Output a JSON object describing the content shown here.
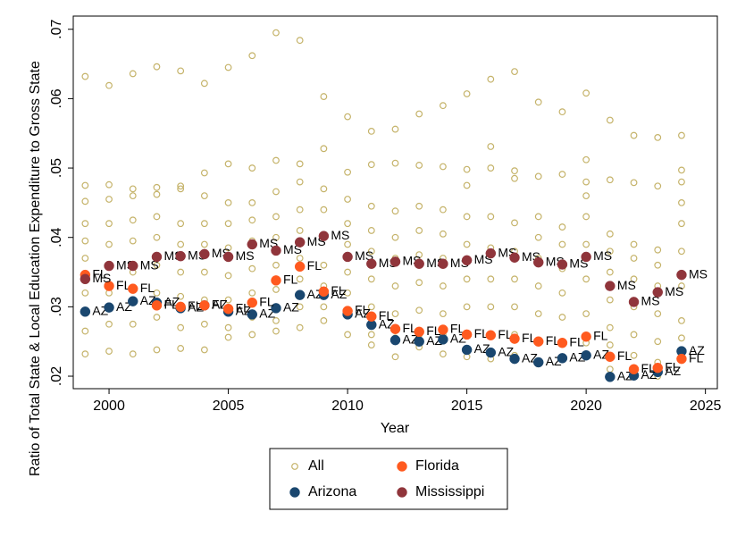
{
  "chart_data": {
    "type": "scatter",
    "xlabel": "Year",
    "ylabel": "Ratio of Total State & Local Education Expenditure to Gross State",
    "xlim": [
      1998.5,
      2025.5
    ],
    "ylim": [
      0.0182,
      0.0719
    ],
    "xticks": [
      2000,
      2005,
      2010,
      2015,
      2020,
      2025
    ],
    "yticks": [
      {
        "value": 0.02,
        "label": ".02"
      },
      {
        "value": 0.03,
        "label": ".03"
      },
      {
        "value": 0.04,
        "label": ".04"
      },
      {
        "value": 0.05,
        "label": ".05"
      },
      {
        "value": 0.06,
        "label": ".06"
      },
      {
        "value": 0.07,
        "label": ".07"
      }
    ],
    "legend": "bottom",
    "series": [
      {
        "name": "All",
        "color": "#c5b36a",
        "marker": "hollow",
        "x": [
          1999,
          1999,
          1999,
          1999,
          1999,
          1999,
          1999,
          1999,
          1999,
          2000,
          2000,
          2000,
          2000,
          2000,
          2000,
          2000,
          2000,
          2000,
          2001,
          2001,
          2001,
          2001,
          2001,
          2001,
          2001,
          2001,
          2001,
          2002,
          2002,
          2002,
          2002,
          2002,
          2002,
          2002,
          2002,
          2002,
          2003,
          2003,
          2003,
          2003,
          2003,
          2003,
          2003,
          2003,
          2003,
          2004,
          2004,
          2004,
          2004,
          2004,
          2004,
          2004,
          2004,
          2004,
          2005,
          2005,
          2005,
          2005,
          2005,
          2005,
          2005,
          2005,
          2005,
          2006,
          2006,
          2006,
          2006,
          2006,
          2006,
          2006,
          2006,
          2006,
          2007,
          2007,
          2007,
          2007,
          2007,
          2007,
          2007,
          2007,
          2007,
          2008,
          2008,
          2008,
          2008,
          2008,
          2008,
          2008,
          2008,
          2008,
          2009,
          2009,
          2009,
          2009,
          2009,
          2009,
          2009,
          2009,
          2009,
          2010,
          2010,
          2010,
          2010,
          2010,
          2010,
          2010,
          2010,
          2010,
          2011,
          2011,
          2011,
          2011,
          2011,
          2011,
          2011,
          2011,
          2011,
          2012,
          2012,
          2012,
          2012,
          2012,
          2012,
          2012,
          2012,
          2012,
          2013,
          2013,
          2013,
          2013,
          2013,
          2013,
          2013,
          2013,
          2013,
          2014,
          2014,
          2014,
          2014,
          2014,
          2014,
          2014,
          2014,
          2014,
          2015,
          2015,
          2015,
          2015,
          2015,
          2015,
          2015,
          2015,
          2015,
          2016,
          2016,
          2016,
          2016,
          2016,
          2016,
          2016,
          2016,
          2016,
          2017,
          2017,
          2017,
          2017,
          2017,
          2017,
          2017,
          2017,
          2017,
          2018,
          2018,
          2018,
          2018,
          2018,
          2018,
          2018,
          2018,
          2018,
          2019,
          2019,
          2019,
          2019,
          2019,
          2019,
          2019,
          2019,
          2019,
          2020,
          2020,
          2020,
          2020,
          2020,
          2020,
          2020,
          2020,
          2020,
          2021,
          2021,
          2021,
          2021,
          2021,
          2021,
          2021,
          2021,
          2021,
          2022,
          2022,
          2022,
          2022,
          2022,
          2022,
          2022,
          2022,
          2022,
          2023,
          2023,
          2023,
          2023,
          2023,
          2023,
          2023,
          2023,
          2023,
          2024,
          2024,
          2024,
          2024,
          2024,
          2024,
          2024,
          2024,
          2024
        ],
        "values": [
          0.0632,
          0.0475,
          0.0452,
          0.042,
          0.0395,
          0.037,
          0.032,
          0.0265,
          0.0232,
          0.0619,
          0.0476,
          0.0455,
          0.042,
          0.039,
          0.036,
          0.032,
          0.0275,
          0.0236,
          0.0636,
          0.047,
          0.046,
          0.0425,
          0.0395,
          0.035,
          0.031,
          0.0275,
          0.0232,
          0.0646,
          0.0472,
          0.0462,
          0.043,
          0.04,
          0.036,
          0.032,
          0.0285,
          0.0238,
          0.064,
          0.0474,
          0.047,
          0.042,
          0.039,
          0.035,
          0.0315,
          0.027,
          0.024,
          0.0622,
          0.0493,
          0.046,
          0.042,
          0.039,
          0.035,
          0.031,
          0.0275,
          0.0238,
          0.0645,
          0.0506,
          0.045,
          0.042,
          0.0385,
          0.0345,
          0.031,
          0.027,
          0.0256,
          0.0662,
          0.05,
          0.045,
          0.0425,
          0.0395,
          0.0355,
          0.032,
          0.0285,
          0.026,
          0.0695,
          0.0511,
          0.0466,
          0.043,
          0.04,
          0.036,
          0.0325,
          0.028,
          0.0265,
          0.0684,
          0.0506,
          0.048,
          0.044,
          0.041,
          0.037,
          0.034,
          0.03,
          0.027,
          0.0603,
          0.0528,
          0.047,
          0.044,
          0.04,
          0.036,
          0.033,
          0.03,
          0.028,
          0.0574,
          0.0494,
          0.0455,
          0.042,
          0.039,
          0.035,
          0.032,
          0.029,
          0.026,
          0.0553,
          0.0505,
          0.0445,
          0.041,
          0.038,
          0.034,
          0.03,
          0.026,
          0.0245,
          0.0556,
          0.0507,
          0.0438,
          0.04,
          0.037,
          0.033,
          0.029,
          0.0255,
          0.0228,
          0.0578,
          0.0504,
          0.0445,
          0.041,
          0.0375,
          0.0335,
          0.0295,
          0.026,
          0.0242,
          0.059,
          0.0502,
          0.044,
          0.0405,
          0.037,
          0.033,
          0.029,
          0.026,
          0.0232,
          0.0607,
          0.0498,
          0.0475,
          0.043,
          0.039,
          0.034,
          0.03,
          0.026,
          0.0228,
          0.0628,
          0.0531,
          0.05,
          0.043,
          0.0385,
          0.034,
          0.03,
          0.026,
          0.0225,
          0.0639,
          0.0496,
          0.0485,
          0.0421,
          0.038,
          0.034,
          0.03,
          0.026,
          0.023,
          0.0595,
          0.0488,
          0.043,
          0.04,
          0.037,
          0.033,
          0.029,
          0.025,
          0.0222,
          0.0581,
          0.0491,
          0.0415,
          0.039,
          0.0355,
          0.032,
          0.0285,
          0.025,
          0.0226,
          0.0608,
          0.0512,
          0.048,
          0.046,
          0.043,
          0.039,
          0.034,
          0.029,
          0.0248,
          0.0569,
          0.0483,
          0.0405,
          0.038,
          0.035,
          0.031,
          0.027,
          0.0245,
          0.021,
          0.0547,
          0.0479,
          0.039,
          0.037,
          0.034,
          0.03,
          0.026,
          0.023,
          0.0203,
          0.0544,
          0.0474,
          0.0382,
          0.036,
          0.033,
          0.029,
          0.025,
          0.022,
          0.02,
          0.0547,
          0.0497,
          0.048,
          0.045,
          0.042,
          0.038,
          0.033,
          0.028,
          0.0255
        ]
      },
      {
        "name": "Arizona",
        "color": "#1a476f",
        "marker": "filled",
        "point_label": "AZ",
        "x": [
          1999,
          2000,
          2001,
          2002,
          2003,
          2004,
          2005,
          2006,
          2007,
          2008,
          2009,
          2010,
          2011,
          2012,
          2013,
          2014,
          2015,
          2016,
          2017,
          2018,
          2019,
          2020,
          2021,
          2022,
          2023,
          2024
        ],
        "values": [
          0.0293,
          0.0299,
          0.0308,
          0.0306,
          0.0298,
          0.0302,
          0.0293,
          0.0289,
          0.0298,
          0.0317,
          0.0317,
          0.0289,
          0.0274,
          0.0252,
          0.025,
          0.0253,
          0.0238,
          0.0234,
          0.0225,
          0.022,
          0.0226,
          0.023,
          0.0199,
          0.0201,
          0.0206,
          0.0236
        ]
      },
      {
        "name": "Florida",
        "color": "#ff5a1f",
        "marker": "filled",
        "point_label": "FL",
        "x": [
          1999,
          2000,
          2001,
          2002,
          2003,
          2004,
          2005,
          2006,
          2007,
          2008,
          2009,
          2010,
          2011,
          2012,
          2013,
          2014,
          2015,
          2016,
          2017,
          2018,
          2019,
          2020,
          2021,
          2022,
          2023,
          2024
        ],
        "values": [
          0.0346,
          0.033,
          0.0326,
          0.0302,
          0.03,
          0.0302,
          0.0297,
          0.0306,
          0.0338,
          0.0358,
          0.0322,
          0.0294,
          0.0286,
          0.0268,
          0.0264,
          0.0267,
          0.026,
          0.0259,
          0.0254,
          0.025,
          0.0248,
          0.0257,
          0.0228,
          0.021,
          0.0212,
          0.0225
        ]
      },
      {
        "name": "Mississippi",
        "color": "#90353b",
        "marker": "filled",
        "point_label": "MS",
        "x": [
          1999,
          2000,
          2001,
          2002,
          2003,
          2004,
          2005,
          2006,
          2007,
          2008,
          2009,
          2010,
          2011,
          2012,
          2013,
          2014,
          2015,
          2016,
          2017,
          2018,
          2019,
          2020,
          2021,
          2022,
          2023,
          2024
        ],
        "values": [
          0.034,
          0.0359,
          0.0359,
          0.0372,
          0.0373,
          0.0376,
          0.0372,
          0.039,
          0.0381,
          0.0393,
          0.0402,
          0.0372,
          0.0362,
          0.0365,
          0.0362,
          0.0362,
          0.0367,
          0.0377,
          0.0371,
          0.0364,
          0.0361,
          0.0372,
          0.033,
          0.0307,
          0.0321,
          0.0346
        ]
      }
    ]
  }
}
